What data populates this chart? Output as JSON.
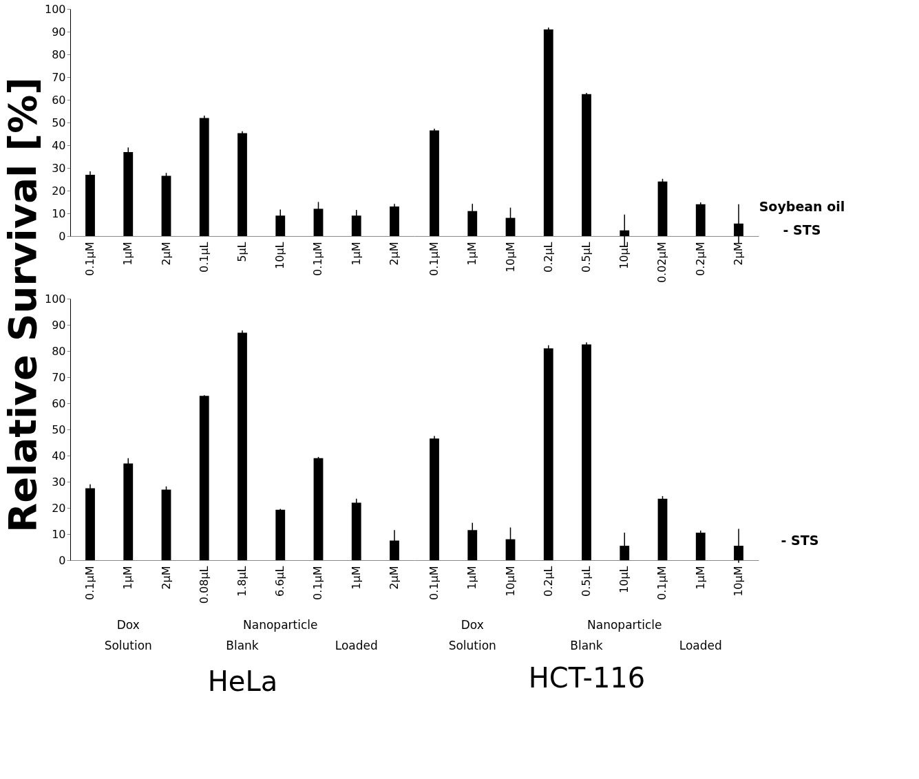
{
  "chart_data": [
    {
      "type": "bar",
      "ylabel": "Relative Survival [%]",
      "categories": [
        "0.1µM",
        "1µM",
        "2µM",
        "0.1µL",
        "5µL",
        "10µL",
        "0.1µM",
        "1µM",
        "2µM"
      ],
      "values": [
        27,
        37,
        26.5,
        52,
        45.3,
        9,
        12,
        9,
        13
      ],
      "errors": [
        1.5,
        2,
        1.3,
        1,
        0.8,
        2.7,
        3,
        2.5,
        1.2
      ],
      "color": "#000000",
      "ylim": [
        0,
        100
      ],
      "yticks": [
        0,
        10,
        20,
        30,
        40,
        50,
        60,
        70,
        80,
        90,
        100
      ],
      "grid": false
    },
    {
      "type": "bar",
      "categories": [
        "0.1µM",
        "1µM",
        "10µM",
        "0.2µL",
        "0.5µL",
        "10µL",
        "0.02µM",
        "0.2µM",
        "2µM"
      ],
      "values": [
        46.5,
        11,
        8,
        91,
        62.5,
        2.5,
        24,
        14,
        5.5
      ],
      "errors": [
        0.8,
        3.2,
        4.5,
        0.8,
        0.5,
        7,
        1.2,
        0.8,
        8.5
      ],
      "color": "#000000",
      "ylim": [
        0,
        100
      ],
      "grid": false,
      "tick_labels": "x",
      "annotations": [
        "Soybean oil",
        "- STS"
      ]
    },
    {
      "type": "bar",
      "xlabel": "HeLa",
      "categories": [
        "0.1µM",
        "1µM",
        "2µM",
        "0.08µL",
        "1.8µL",
        "6.6µL",
        "0.1µM",
        "1µM",
        "2µM"
      ],
      "values": [
        27.5,
        37,
        27,
        62.8,
        87,
        19.3,
        39,
        22,
        7.5
      ],
      "errors": [
        1.5,
        2,
        1.2,
        0.3,
        0.8,
        0.3,
        0.5,
        1.5,
        4
      ],
      "color": "#000000",
      "ylim": [
        0,
        100
      ],
      "yticks": [
        0,
        10,
        20,
        30,
        40,
        50,
        60,
        70,
        80,
        90,
        100
      ],
      "grid": false,
      "annotations": [
        "Dox",
        "Solution",
        "Nanoparticle",
        "Blank",
        "Loaded"
      ]
    },
    {
      "type": "bar",
      "xlabel": "HCT-116",
      "categories": [
        "0.1µM",
        "1µM",
        "10µM",
        "0.2µL",
        "0.5µL",
        "10µL",
        "0.1µM",
        "1µM",
        "10µM"
      ],
      "values": [
        46.5,
        11.5,
        8,
        81,
        82.5,
        5.5,
        23.5,
        10.5,
        5.5
      ],
      "errors": [
        1,
        2.8,
        4.5,
        1.2,
        0.8,
        5,
        1,
        0.8,
        6.5
      ],
      "color": "#000000",
      "ylim": [
        0,
        100
      ],
      "grid": false,
      "tick_labels": "x",
      "annotations": [
        "Dox",
        "Solution",
        "Nanoparticle",
        "Blank",
        "Loaded",
        "- STS"
      ]
    }
  ]
}
